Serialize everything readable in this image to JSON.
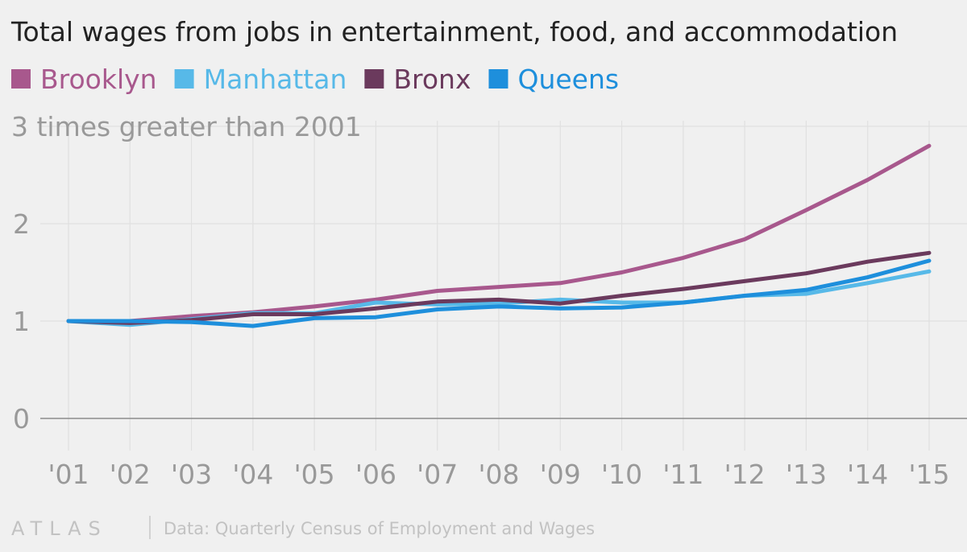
{
  "chart_data": {
    "type": "line",
    "title": "Total wages from jobs in entertainment, food, and accommodation",
    "annotation": "3 times greater than 2001",
    "xlabel": "",
    "ylabel": "",
    "categories": [
      "'01",
      "'02",
      "'03",
      "'04",
      "'05",
      "'06",
      "'07",
      "'08",
      "'09",
      "'10",
      "'11",
      "'12",
      "'13",
      "'14",
      "'15"
    ],
    "y_ticks": [
      "0",
      "1",
      "2"
    ],
    "ylim": [
      0,
      3
    ],
    "series": [
      {
        "name": "Brooklyn",
        "color": "#a8588d",
        "values": [
          1.0,
          1.0,
          1.05,
          1.09,
          1.15,
          1.22,
          1.31,
          1.35,
          1.39,
          1.5,
          1.65,
          1.84,
          2.14,
          2.45,
          2.8
        ]
      },
      {
        "name": "Manhattan",
        "color": "#57b9e8",
        "values": [
          1.0,
          0.96,
          1.02,
          1.08,
          1.08,
          1.19,
          1.17,
          1.18,
          1.22,
          1.19,
          1.19,
          1.26,
          1.28,
          1.39,
          1.51
        ]
      },
      {
        "name": "Bronx",
        "color": "#6b3a5d",
        "values": [
          1.0,
          0.98,
          1.01,
          1.07,
          1.07,
          1.13,
          1.2,
          1.22,
          1.18,
          1.26,
          1.33,
          1.41,
          1.49,
          1.61,
          1.7
        ]
      },
      {
        "name": "Queens",
        "color": "#1e8fdc",
        "values": [
          1.0,
          1.0,
          0.99,
          0.95,
          1.03,
          1.04,
          1.12,
          1.15,
          1.13,
          1.14,
          1.19,
          1.26,
          1.32,
          1.45,
          1.62
        ]
      }
    ]
  },
  "footer": {
    "logo": "ATLAS",
    "source": "Data: Quarterly Census of Employment and Wages"
  }
}
